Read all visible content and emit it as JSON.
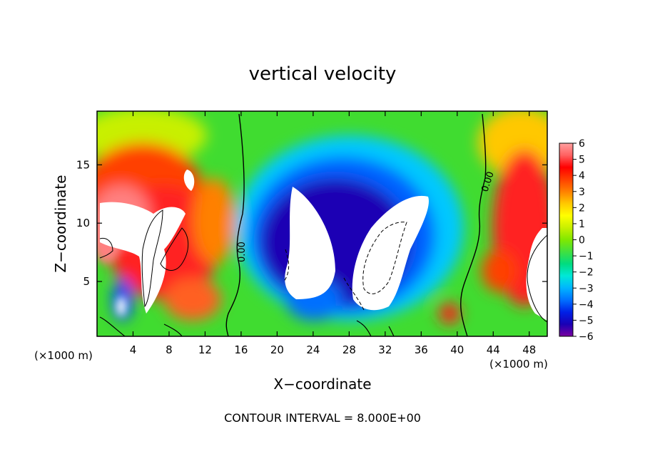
{
  "chart_data": {
    "type": "heatmap",
    "title": "vertical velocity",
    "xlabel": "X−coordinate",
    "ylabel": "Z−coordinate",
    "x_unit_label": "(×1000 m)",
    "footer": "CONTOUR INTERVAL = 8.000E+00",
    "contour_label": "0.00",
    "xlim": [
      0,
      50
    ],
    "ylim": [
      0.3,
      19.6
    ],
    "x_ticks": [
      4,
      8,
      12,
      16,
      20,
      24,
      28,
      32,
      36,
      40,
      44,
      48
    ],
    "y_ticks": [
      5,
      10,
      15
    ],
    "colorbar": {
      "range": [
        -6,
        6
      ],
      "ticks": [
        "6",
        "5",
        "4",
        "3",
        "2",
        "1",
        "0",
        "−1",
        "−2",
        "−3",
        "−4",
        "−5",
        "−6"
      ],
      "colors": [
        "#7a00a0",
        "#1a00b4",
        "#0020e6",
        "#0070ff",
        "#00b4ff",
        "#00e8d8",
        "#00dc80",
        "#40e040",
        "#80e800",
        "#c8f000",
        "#ffff00",
        "#ffc800",
        "#ff8000",
        "#ff4000",
        "#ff0000",
        "#ff6060",
        "#ffa0a0"
      ]
    }
  }
}
